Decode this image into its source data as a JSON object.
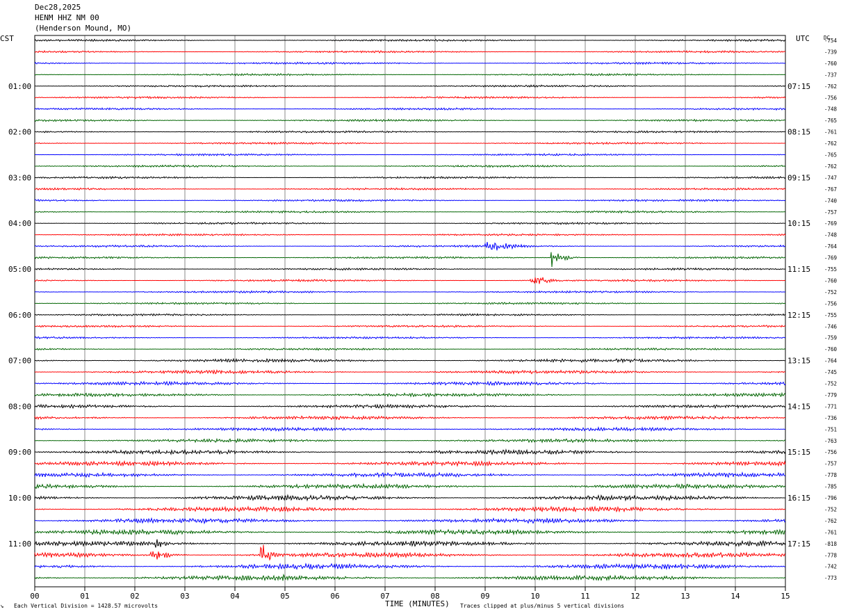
{
  "header": {
    "date": "Dec28,2025",
    "station": "HENM HHZ NM 00",
    "location": "(Henderson Mound, MO)"
  },
  "left_zone_label": "CST",
  "right_zone_label": "UTC",
  "dc_label": "DC",
  "footer": {
    "scale": "Each Vertical Division = 1428.57 microvolts",
    "xaxis_title": "TIME (MINUTES)",
    "clip_note": "Traces clipped at plus/minus 5 vertical divisions",
    "corner_mark": "↘"
  },
  "chart_data": {
    "type": "line",
    "title": "HENM HHZ NM 00",
    "xlabel": "TIME (MINUTES)",
    "xlim": [
      0,
      15
    ],
    "x_ticks": [
      "00",
      "01",
      "02",
      "03",
      "04",
      "05",
      "06",
      "07",
      "08",
      "09",
      "10",
      "11",
      "12",
      "13",
      "14",
      "15"
    ],
    "trace_colors": [
      "#000000",
      "#ff0000",
      "#0000ff",
      "#006400"
    ],
    "left_hour_labels": [
      "01:00",
      "02:00",
      "03:00",
      "04:00",
      "05:00",
      "06:00",
      "07:00",
      "08:00",
      "09:00",
      "10:00",
      "11:00"
    ],
    "right_hour_labels": [
      "07:15",
      "08:15",
      "09:15",
      "10:15",
      "11:15",
      "12:15",
      "13:15",
      "14:15",
      "15:15",
      "16:15",
      "17:15"
    ],
    "trace_count": 48,
    "dc_offsets": [
      "-754",
      "-739",
      "-760",
      "-737",
      "-762",
      "-756",
      "-748",
      "-765",
      "-761",
      "-762",
      "-765",
      "-762",
      "-747",
      "-767",
      "-740",
      "-757",
      "-769",
      "-748",
      "-764",
      "-769",
      "-755",
      "-760",
      "-752",
      "-756",
      "-755",
      "-746",
      "-759",
      "-760",
      "-764",
      "-745",
      "-752",
      "-779",
      "-771",
      "-736",
      "-751",
      "-763",
      "-756",
      "-757",
      "-778",
      "-785",
      "-796",
      "-752",
      "-762",
      "-761",
      "-818",
      "-778",
      "-742",
      "-773"
    ],
    "events": [
      {
        "trace": 18,
        "minute": 9.0,
        "duration": 1.2,
        "amplitude": 12,
        "color": "#0000ff"
      },
      {
        "trace": 19,
        "minute": 10.3,
        "duration": 0.6,
        "amplitude": 14,
        "color": "#006400"
      },
      {
        "trace": 21,
        "minute": 9.9,
        "duration": 0.8,
        "amplitude": 10,
        "color": "#ff0000"
      },
      {
        "trace": 44,
        "minute": 2.4,
        "duration": 0.5,
        "amplitude": 9,
        "color": "#000000"
      },
      {
        "trace": 45,
        "minute": 2.3,
        "duration": 0.8,
        "amplitude": 11,
        "color": "#ff0000"
      },
      {
        "trace": 45,
        "minute": 4.5,
        "duration": 0.6,
        "amplitude": 18,
        "color": "#ff0000"
      },
      {
        "trace": 47,
        "minute": 4.9,
        "duration": 0.5,
        "amplitude": 8,
        "color": "#006400"
      }
    ]
  }
}
